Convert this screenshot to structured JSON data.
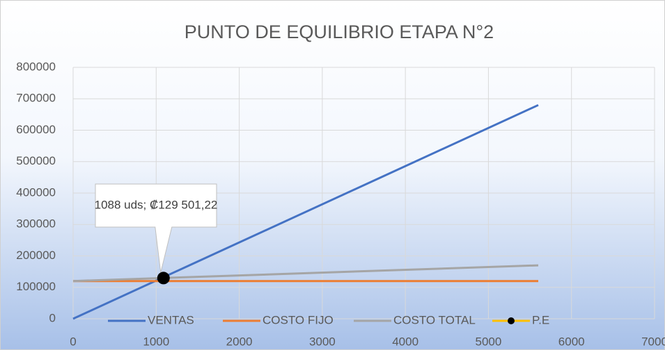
{
  "chart_data": {
    "type": "line",
    "title": "PUNTO DE EQUILIBRIO ETAPA N°2",
    "series": [
      {
        "name": "VENTAS",
        "color": "#4472c4",
        "x": [
          0,
          5600
        ],
        "values": [
          0,
          680000
        ]
      },
      {
        "name": "COSTO FIJO",
        "color": "#ed7d31",
        "x": [
          0,
          5600
        ],
        "values": [
          120000,
          120000
        ]
      },
      {
        "name": "COSTO TOTAL",
        "color": "#a5a5a5",
        "x": [
          0,
          5600
        ],
        "values": [
          120000,
          170000
        ]
      },
      {
        "name": "P.E",
        "color": "#ffc000",
        "marker_color": "#000000",
        "x": [
          1088
        ],
        "values": [
          129501.22
        ],
        "value_labels": [
          "1088 uds; ₡129 501,22"
        ]
      }
    ],
    "xlim": [
      0,
      7000
    ],
    "xticks": [
      0,
      1000,
      2000,
      3000,
      4000,
      5000,
      6000,
      7000
    ],
    "ylim": [
      0,
      800000
    ],
    "yticks": [
      0,
      100000,
      200000,
      300000,
      400000,
      500000,
      600000,
      700000,
      800000
    ],
    "grid": true,
    "legend": "bottom"
  }
}
